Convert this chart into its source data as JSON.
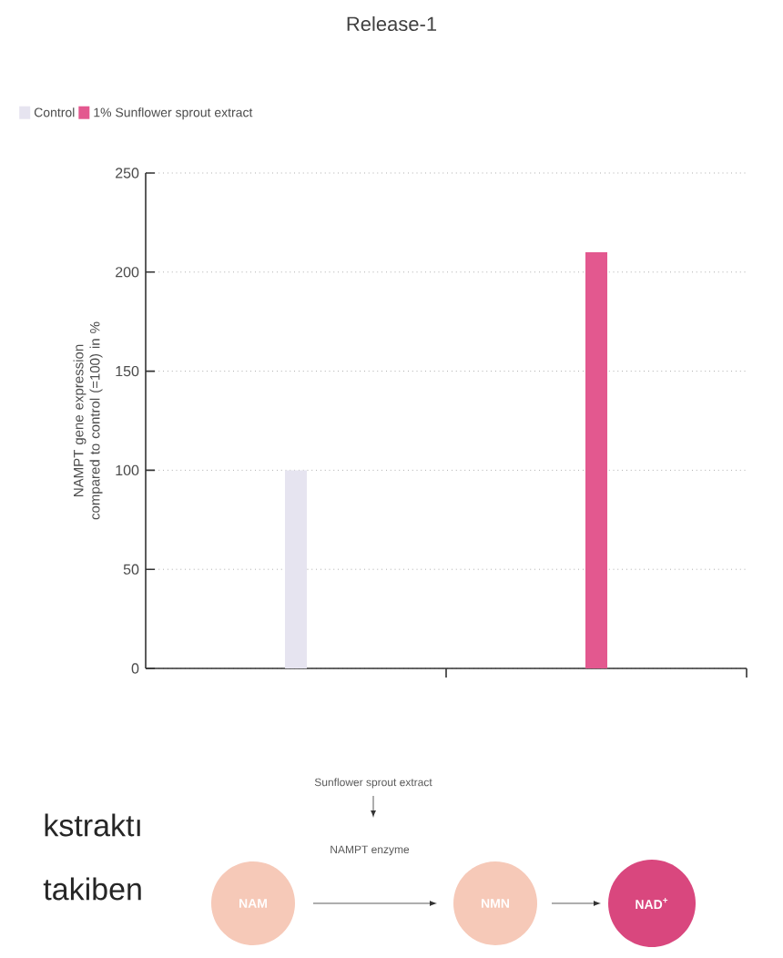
{
  "chart_data": {
    "type": "bar",
    "title": "Release-1",
    "ylabel": "NAMPT gene expression compared to control (=100) in %",
    "categories": [
      null,
      null
    ],
    "series": [
      {
        "name": "Control",
        "color": "#e6e4f0",
        "values": [
          100,
          null
        ]
      },
      {
        "name": "1% Sunflower sprout extract",
        "color": "#e3588f",
        "values": [
          null,
          210
        ]
      }
    ],
    "ylim": [
      0,
      250
    ],
    "yticks": [
      0,
      50,
      100,
      150,
      200,
      250
    ],
    "grid": "y",
    "legend": "top left",
    "annotations": [
      "kstraktı",
      "takiben",
      "Sunflower sprout extract",
      "NAMPT enzyme",
      "NAM",
      "NMN",
      "NAD$^{+}$"
    ]
  }
}
